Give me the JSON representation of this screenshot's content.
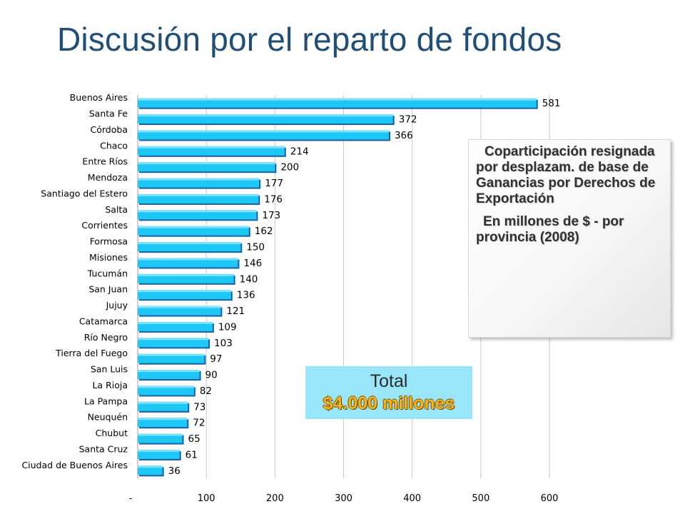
{
  "slide": {
    "title": "Discusión por el reparto de fondos"
  },
  "info_box": {
    "line1": "Coparticipación resignada por desplazam. de base de Ganancias por Derechos de Exportación",
    "line2": "En millones de $ - por provincia (2008)"
  },
  "total_box": {
    "label": "Total",
    "value": "$4.000 millones"
  },
  "colors": {
    "bar": "#1ec8f5",
    "bar_shadow": "#1a5fa8",
    "title": "#1f4e79",
    "grid": "#c8c8c8"
  },
  "chart_data": {
    "type": "bar",
    "orientation": "horizontal",
    "categories": [
      "Buenos Aires",
      "Santa Fe",
      "Córdoba",
      "Chaco",
      "Entre Ríos",
      "Mendoza",
      "Santiago del Estero",
      "Salta",
      "Corrientes",
      "Formosa",
      "Misiones",
      "Tucumán",
      "San Juan",
      "Jujuy",
      "Catamarca",
      "Río Negro",
      "Tierra del Fuego",
      "San Luis",
      "La Rioja",
      "La Pampa",
      "Neuquén",
      "Chubut",
      "Santa Cruz",
      "Ciudad de Buenos Aires"
    ],
    "values": [
      581,
      372,
      366,
      214,
      200,
      177,
      176,
      173,
      162,
      150,
      146,
      140,
      136,
      121,
      109,
      103,
      97,
      90,
      82,
      73,
      72,
      65,
      61,
      36
    ],
    "x_ticks": [
      "-",
      "100",
      "200",
      "300",
      "400",
      "500",
      "600"
    ],
    "xlim": [
      0,
      600
    ],
    "grid": "vertical",
    "legend": "none"
  }
}
